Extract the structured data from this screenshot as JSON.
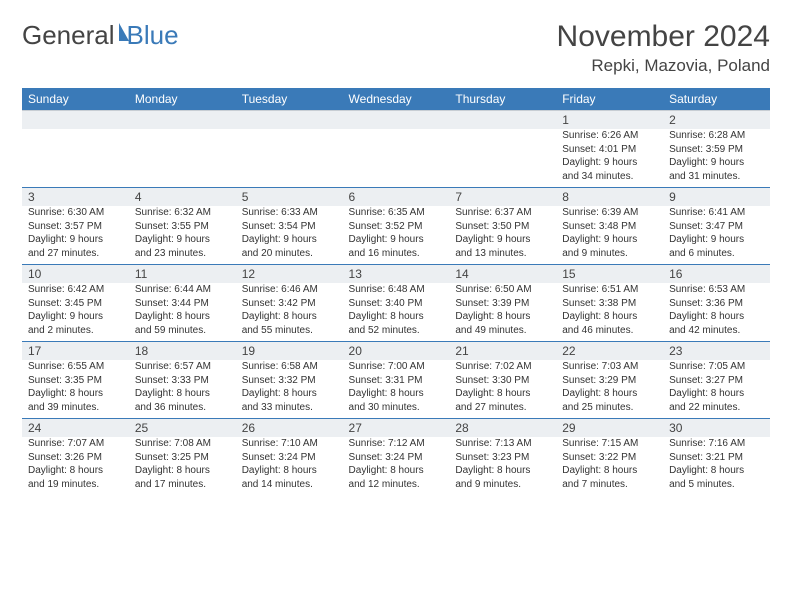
{
  "logo": {
    "text1": "General",
    "text2": "Blue"
  },
  "title": "November 2024",
  "location": "Repki, Mazovia, Poland",
  "weekdays": [
    "Sunday",
    "Monday",
    "Tuesday",
    "Wednesday",
    "Thursday",
    "Friday",
    "Saturday"
  ],
  "colors": {
    "header_bg": "#3a7ab8",
    "daynum_bg": "#eceff2",
    "rule": "#3a7ab8",
    "text": "#333333"
  },
  "weeks": [
    [
      null,
      null,
      null,
      null,
      null,
      {
        "n": "1",
        "sr": "Sunrise: 6:26 AM",
        "ss": "Sunset: 4:01 PM",
        "d1": "Daylight: 9 hours",
        "d2": "and 34 minutes."
      },
      {
        "n": "2",
        "sr": "Sunrise: 6:28 AM",
        "ss": "Sunset: 3:59 PM",
        "d1": "Daylight: 9 hours",
        "d2": "and 31 minutes."
      }
    ],
    [
      {
        "n": "3",
        "sr": "Sunrise: 6:30 AM",
        "ss": "Sunset: 3:57 PM",
        "d1": "Daylight: 9 hours",
        "d2": "and 27 minutes."
      },
      {
        "n": "4",
        "sr": "Sunrise: 6:32 AM",
        "ss": "Sunset: 3:55 PM",
        "d1": "Daylight: 9 hours",
        "d2": "and 23 minutes."
      },
      {
        "n": "5",
        "sr": "Sunrise: 6:33 AM",
        "ss": "Sunset: 3:54 PM",
        "d1": "Daylight: 9 hours",
        "d2": "and 20 minutes."
      },
      {
        "n": "6",
        "sr": "Sunrise: 6:35 AM",
        "ss": "Sunset: 3:52 PM",
        "d1": "Daylight: 9 hours",
        "d2": "and 16 minutes."
      },
      {
        "n": "7",
        "sr": "Sunrise: 6:37 AM",
        "ss": "Sunset: 3:50 PM",
        "d1": "Daylight: 9 hours",
        "d2": "and 13 minutes."
      },
      {
        "n": "8",
        "sr": "Sunrise: 6:39 AM",
        "ss": "Sunset: 3:48 PM",
        "d1": "Daylight: 9 hours",
        "d2": "and 9 minutes."
      },
      {
        "n": "9",
        "sr": "Sunrise: 6:41 AM",
        "ss": "Sunset: 3:47 PM",
        "d1": "Daylight: 9 hours",
        "d2": "and 6 minutes."
      }
    ],
    [
      {
        "n": "10",
        "sr": "Sunrise: 6:42 AM",
        "ss": "Sunset: 3:45 PM",
        "d1": "Daylight: 9 hours",
        "d2": "and 2 minutes."
      },
      {
        "n": "11",
        "sr": "Sunrise: 6:44 AM",
        "ss": "Sunset: 3:44 PM",
        "d1": "Daylight: 8 hours",
        "d2": "and 59 minutes."
      },
      {
        "n": "12",
        "sr": "Sunrise: 6:46 AM",
        "ss": "Sunset: 3:42 PM",
        "d1": "Daylight: 8 hours",
        "d2": "and 55 minutes."
      },
      {
        "n": "13",
        "sr": "Sunrise: 6:48 AM",
        "ss": "Sunset: 3:40 PM",
        "d1": "Daylight: 8 hours",
        "d2": "and 52 minutes."
      },
      {
        "n": "14",
        "sr": "Sunrise: 6:50 AM",
        "ss": "Sunset: 3:39 PM",
        "d1": "Daylight: 8 hours",
        "d2": "and 49 minutes."
      },
      {
        "n": "15",
        "sr": "Sunrise: 6:51 AM",
        "ss": "Sunset: 3:38 PM",
        "d1": "Daylight: 8 hours",
        "d2": "and 46 minutes."
      },
      {
        "n": "16",
        "sr": "Sunrise: 6:53 AM",
        "ss": "Sunset: 3:36 PM",
        "d1": "Daylight: 8 hours",
        "d2": "and 42 minutes."
      }
    ],
    [
      {
        "n": "17",
        "sr": "Sunrise: 6:55 AM",
        "ss": "Sunset: 3:35 PM",
        "d1": "Daylight: 8 hours",
        "d2": "and 39 minutes."
      },
      {
        "n": "18",
        "sr": "Sunrise: 6:57 AM",
        "ss": "Sunset: 3:33 PM",
        "d1": "Daylight: 8 hours",
        "d2": "and 36 minutes."
      },
      {
        "n": "19",
        "sr": "Sunrise: 6:58 AM",
        "ss": "Sunset: 3:32 PM",
        "d1": "Daylight: 8 hours",
        "d2": "and 33 minutes."
      },
      {
        "n": "20",
        "sr": "Sunrise: 7:00 AM",
        "ss": "Sunset: 3:31 PM",
        "d1": "Daylight: 8 hours",
        "d2": "and 30 minutes."
      },
      {
        "n": "21",
        "sr": "Sunrise: 7:02 AM",
        "ss": "Sunset: 3:30 PM",
        "d1": "Daylight: 8 hours",
        "d2": "and 27 minutes."
      },
      {
        "n": "22",
        "sr": "Sunrise: 7:03 AM",
        "ss": "Sunset: 3:29 PM",
        "d1": "Daylight: 8 hours",
        "d2": "and 25 minutes."
      },
      {
        "n": "23",
        "sr": "Sunrise: 7:05 AM",
        "ss": "Sunset: 3:27 PM",
        "d1": "Daylight: 8 hours",
        "d2": "and 22 minutes."
      }
    ],
    [
      {
        "n": "24",
        "sr": "Sunrise: 7:07 AM",
        "ss": "Sunset: 3:26 PM",
        "d1": "Daylight: 8 hours",
        "d2": "and 19 minutes."
      },
      {
        "n": "25",
        "sr": "Sunrise: 7:08 AM",
        "ss": "Sunset: 3:25 PM",
        "d1": "Daylight: 8 hours",
        "d2": "and 17 minutes."
      },
      {
        "n": "26",
        "sr": "Sunrise: 7:10 AM",
        "ss": "Sunset: 3:24 PM",
        "d1": "Daylight: 8 hours",
        "d2": "and 14 minutes."
      },
      {
        "n": "27",
        "sr": "Sunrise: 7:12 AM",
        "ss": "Sunset: 3:24 PM",
        "d1": "Daylight: 8 hours",
        "d2": "and 12 minutes."
      },
      {
        "n": "28",
        "sr": "Sunrise: 7:13 AM",
        "ss": "Sunset: 3:23 PM",
        "d1": "Daylight: 8 hours",
        "d2": "and 9 minutes."
      },
      {
        "n": "29",
        "sr": "Sunrise: 7:15 AM",
        "ss": "Sunset: 3:22 PM",
        "d1": "Daylight: 8 hours",
        "d2": "and 7 minutes."
      },
      {
        "n": "30",
        "sr": "Sunrise: 7:16 AM",
        "ss": "Sunset: 3:21 PM",
        "d1": "Daylight: 8 hours",
        "d2": "and 5 minutes."
      }
    ]
  ]
}
